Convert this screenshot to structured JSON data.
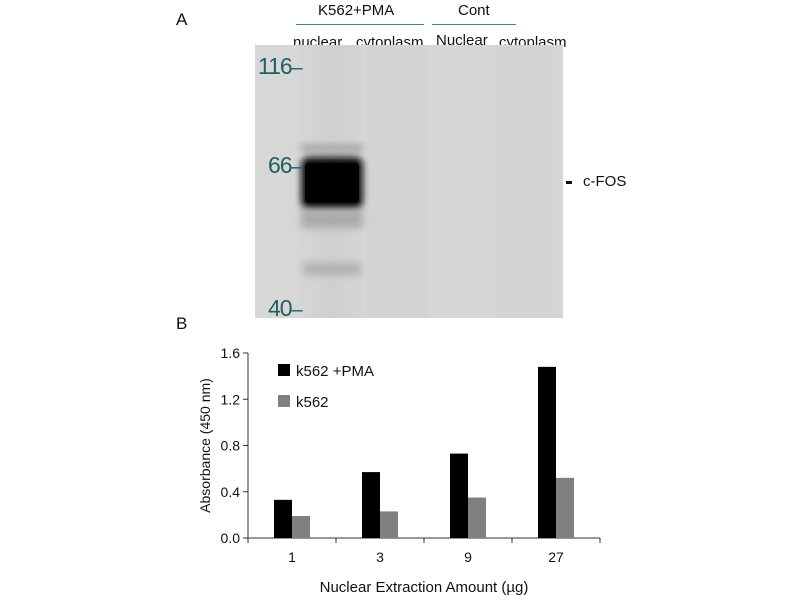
{
  "panel_a": {
    "label": "A",
    "groups": [
      {
        "label": "K562+PMA",
        "line_color": "#3a8a8a"
      },
      {
        "label": "Cont",
        "line_color": "#3a8a8a"
      }
    ],
    "lanes": [
      "nuclear",
      "cytoplasm",
      "Nuclear",
      "cytoplasm"
    ],
    "markers": [
      {
        "value": "116",
        "tick": "–"
      },
      {
        "value": "66",
        "tick": "–"
      },
      {
        "value": "40",
        "tick": "–"
      }
    ],
    "band_label": "c-FOS",
    "marker_color": "#1f5f62"
  },
  "panel_b": {
    "label": "B"
  },
  "chart_data": {
    "type": "bar",
    "categories": [
      "1",
      "3",
      "9",
      "27"
    ],
    "series": [
      {
        "name": "k562 +PMA",
        "values": [
          0.33,
          0.57,
          0.73,
          1.48
        ],
        "color": "#000000"
      },
      {
        "name": "k562",
        "values": [
          0.19,
          0.23,
          0.35,
          0.52
        ],
        "color": "#808080"
      }
    ],
    "xlabel": "Nuclear Extraction Amount (µg)",
    "ylabel": "Absorbance (450 nm)",
    "ylim": [
      0,
      1.6
    ],
    "yticks": [
      "0.0",
      "0.4",
      "0.8",
      "1.2",
      "1.6"
    ],
    "grid": false,
    "legend": "top-left"
  }
}
